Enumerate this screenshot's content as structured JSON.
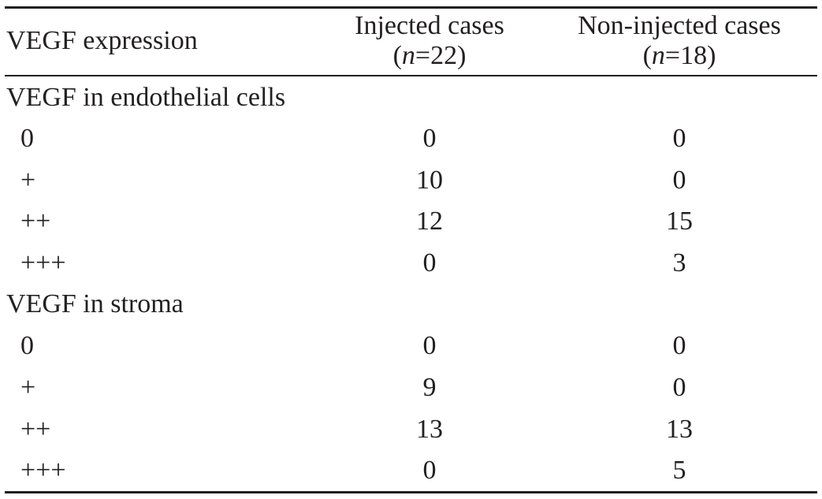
{
  "table": {
    "header": {
      "label": "VEGF expression",
      "injected": {
        "title": "Injected cases",
        "n_prefix": "(",
        "n_var": "n",
        "n_value": "=22)"
      },
      "noninjected": {
        "title": "Non-injected cases",
        "n_prefix": "(",
        "n_var": "n",
        "n_value": "=18)"
      }
    },
    "sections": [
      {
        "title": "VEGF in endothelial cells",
        "rows": [
          {
            "grade": "0",
            "injected": "0",
            "noninjected": "0"
          },
          {
            "grade": "+",
            "injected": "10",
            "noninjected": "0"
          },
          {
            "grade": "++",
            "injected": "12",
            "noninjected": "15"
          },
          {
            "grade": "+++",
            "injected": "0",
            "noninjected": "3"
          }
        ]
      },
      {
        "title": "VEGF in stroma",
        "rows": [
          {
            "grade": "0",
            "injected": "0",
            "noninjected": "0"
          },
          {
            "grade": "+",
            "injected": "9",
            "noninjected": "0"
          },
          {
            "grade": "++",
            "injected": "13",
            "noninjected": "13"
          },
          {
            "grade": "+++",
            "injected": "0",
            "noninjected": "5"
          }
        ]
      }
    ]
  }
}
